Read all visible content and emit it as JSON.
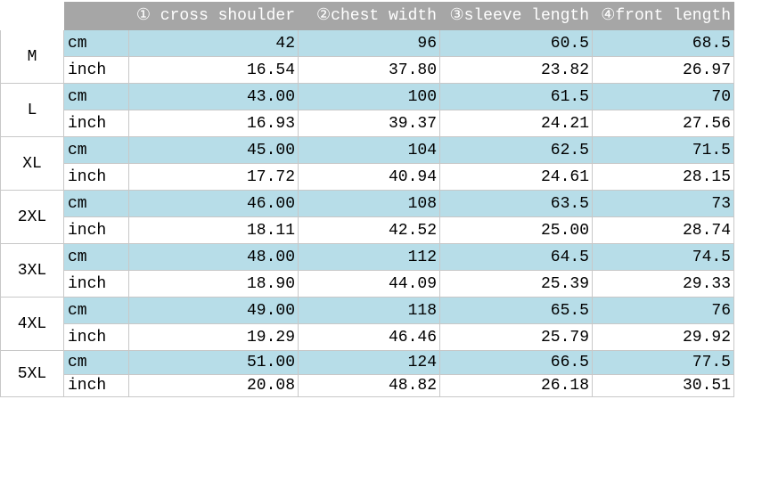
{
  "table": {
    "columns": [
      "① cross shoulder",
      "②chest width",
      "③sleeve length",
      "④front length"
    ],
    "rows": [
      {
        "size": "M",
        "cm": [
          "cm",
          "42",
          "96",
          "60.5",
          "68.5"
        ],
        "inch": [
          "inch",
          "16.54",
          "37.80",
          "23.82",
          "26.97"
        ]
      },
      {
        "size": "L",
        "cm": [
          "cm",
          "43.00",
          "100",
          "61.5",
          "70"
        ],
        "inch": [
          "inch",
          "16.93",
          "39.37",
          "24.21",
          "27.56"
        ]
      },
      {
        "size": "XL",
        "cm": [
          "cm",
          "45.00",
          "104",
          "62.5",
          "71.5"
        ],
        "inch": [
          "inch",
          "17.72",
          "40.94",
          "24.61",
          "28.15"
        ]
      },
      {
        "size": "2XL",
        "cm": [
          "cm",
          "46.00",
          "108",
          "63.5",
          "73"
        ],
        "inch": [
          "inch",
          "18.11",
          "42.52",
          "25.00",
          "28.74"
        ]
      },
      {
        "size": "3XL",
        "cm": [
          "cm",
          "48.00",
          "112",
          "64.5",
          "74.5"
        ],
        "inch": [
          "inch",
          "18.90",
          "44.09",
          "25.39",
          "29.33"
        ]
      },
      {
        "size": "4XL",
        "cm": [
          "cm",
          "49.00",
          "118",
          "65.5",
          "76"
        ],
        "inch": [
          "inch",
          "19.29",
          "46.46",
          "25.79",
          "29.92"
        ]
      },
      {
        "size": "5XL",
        "cm": [
          "cm",
          "51.00",
          "124",
          "66.5",
          "77.5"
        ],
        "inch": [
          "inch",
          "20.08",
          "48.82",
          "26.18",
          "30.51"
        ]
      }
    ]
  }
}
